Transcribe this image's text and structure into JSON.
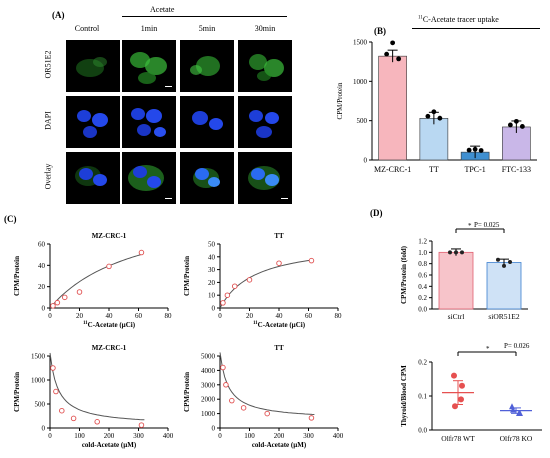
{
  "panel_a": {
    "label": "(A)",
    "group_title": "Acetate",
    "columns": [
      "Control",
      "1min",
      "5min",
      "30min"
    ],
    "rows": [
      "OR51E2",
      "DAPI",
      "Overlay"
    ]
  },
  "panel_b": {
    "label": "(B)",
    "title_sup": "11",
    "title_rest": "C-Acetate tracer uptake",
    "ylabel": "CPM/Protein",
    "colors": [
      "#f7b6bd",
      "#b9d8f2",
      "#3f8fd0",
      "#c9b7e8"
    ]
  },
  "panel_c": {
    "label": "(C)"
  },
  "panel_d": {
    "label": "(D)",
    "pvalue_top": "P= 0.025",
    "pvalue_bottom": "P= 0.026",
    "star": "*"
  },
  "chart_data": [
    {
      "id": "B",
      "type": "bar",
      "categories": [
        "MZ-CRC-1",
        "TT",
        "TPC-1",
        "FTC-133"
      ],
      "values": [
        1320,
        530,
        100,
        420
      ],
      "ylabel": "CPM/Protein",
      "ylim": [
        0,
        1500
      ],
      "yticks": [
        0,
        500,
        1000,
        1500
      ],
      "title": "11C-Acetate tracer uptake"
    },
    {
      "id": "C1",
      "type": "scatter",
      "title": "MZ-CRC-1",
      "x": [
        2,
        5,
        10,
        20,
        40,
        62
      ],
      "y": [
        2,
        5,
        10,
        15,
        39,
        52
      ],
      "xlabel": "11C-Acetate (µCi)",
      "ylabel": "CPM/Protein",
      "xlim": [
        0,
        80
      ],
      "ylim": [
        0,
        60
      ],
      "xticks": [
        0,
        20,
        40,
        60,
        80
      ],
      "yticks": [
        0,
        20,
        40,
        60
      ]
    },
    {
      "id": "C2",
      "type": "scatter",
      "title": "TT",
      "x": [
        2,
        5,
        10,
        20,
        40,
        62
      ],
      "y": [
        4,
        10,
        17,
        22,
        35,
        37
      ],
      "xlabel": "11C-Acetate (µCi)",
      "ylabel": "CPM/Protein",
      "xlim": [
        0,
        80
      ],
      "ylim": [
        0,
        50
      ],
      "xticks": [
        0,
        20,
        40,
        60,
        80
      ],
      "yticks": [
        0,
        10,
        20,
        30,
        40,
        50
      ]
    },
    {
      "id": "C3",
      "type": "scatter",
      "title": "MZ-CRC-1",
      "x": [
        10,
        20,
        40,
        80,
        160,
        310
      ],
      "y": [
        1250,
        760,
        360,
        200,
        130,
        60
      ],
      "xlabel": "cold-Acetate (µM)",
      "ylabel": "CPM/Protein",
      "xlim": [
        0,
        400
      ],
      "ylim": [
        0,
        1500
      ],
      "xticks": [
        0,
        100,
        200,
        300,
        400
      ],
      "yticks": [
        0,
        500,
        1000,
        1500
      ]
    },
    {
      "id": "C4",
      "type": "scatter",
      "title": "TT",
      "x": [
        10,
        20,
        40,
        80,
        160,
        310
      ],
      "y": [
        4200,
        3000,
        1900,
        1400,
        1000,
        700
      ],
      "xlabel": "cold-Acetate (µM)",
      "ylabel": "CPM/Protein",
      "xlim": [
        0,
        400
      ],
      "ylim": [
        0,
        5000
      ],
      "xticks": [
        0,
        100,
        200,
        300,
        400
      ],
      "yticks": [
        0,
        1000,
        2000,
        3000,
        4000,
        5000
      ]
    },
    {
      "id": "D1",
      "type": "bar",
      "categories": [
        "siCtrl",
        "siOR51E2"
      ],
      "values": [
        1.0,
        0.82
      ],
      "ylabel": "CPM/Protein (fold)",
      "ylim": [
        0.0,
        1.2
      ],
      "yticks": [
        0.0,
        0.2,
        0.4,
        0.6,
        0.8,
        1.0,
        1.2
      ]
    },
    {
      "id": "D2",
      "type": "scatter",
      "categories": [
        "Olfr78 WT",
        "Olfr78 KO"
      ],
      "points": [
        [
          0.16,
          0.13,
          0.07,
          0.09
        ],
        [
          0.07,
          0.05,
          0.06,
          0.05
        ]
      ],
      "means": [
        0.11,
        0.057
      ],
      "ylabel": "Thyroid/Blood CPM",
      "ylim": [
        0.0,
        0.2
      ],
      "yticks": [
        0.0,
        0.1,
        0.2
      ]
    }
  ]
}
